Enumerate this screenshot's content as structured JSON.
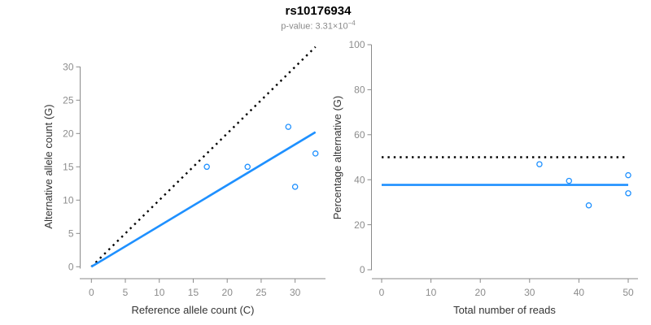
{
  "header": {
    "title": "rs10176934",
    "pvalue_label": "p-value:",
    "pvalue_mantissa": "3.31×10",
    "pvalue_exponent": "−4"
  },
  "colors": {
    "accent_blue": "#1E90FF",
    "axis_gray": "#8A8A8A",
    "tick_text_gray": "#8C8C8C",
    "axis_title_dark": "#333333",
    "reference_line_black": "#000000",
    "title_black": "#000000",
    "subtitle_gray": "#8A8A8A",
    "background": "#FFFFFF"
  },
  "chart_data": [
    {
      "type": "scatter",
      "panel": "left",
      "title": "",
      "xlabel": "Reference allele count (C)",
      "ylabel": "Alternative allele count (G)",
      "xlim": [
        0,
        33
      ],
      "ylim": [
        0,
        33
      ],
      "xticks": [
        0,
        5,
        10,
        15,
        20,
        25,
        30
      ],
      "yticks": [
        0,
        5,
        10,
        15,
        20,
        25,
        30
      ],
      "grid": false,
      "legend": false,
      "points": [
        {
          "x": 17,
          "y": 15
        },
        {
          "x": 23,
          "y": 15
        },
        {
          "x": 29,
          "y": 21
        },
        {
          "x": 30,
          "y": 12
        },
        {
          "x": 33,
          "y": 17
        }
      ],
      "lines": [
        {
          "name": "expected-1to1-line",
          "style": "dotted",
          "color": "#000000",
          "x1": 0,
          "y1": 0,
          "x2": 33,
          "y2": 33
        },
        {
          "name": "fitted-allelic-ratio-line",
          "style": "solid",
          "color": "#1E90FF",
          "x1": 0,
          "y1": 0,
          "x2": 33,
          "y2": 20.2
        }
      ]
    },
    {
      "type": "scatter",
      "panel": "right",
      "title": "",
      "xlabel": "Total number of reads",
      "ylabel": "Percentage alternative (G)",
      "xlim": [
        0,
        50
      ],
      "ylim": [
        0,
        100
      ],
      "xticks": [
        0,
        10,
        20,
        30,
        40,
        50
      ],
      "yticks": [
        0,
        20,
        40,
        60,
        80,
        100
      ],
      "grid": false,
      "legend": false,
      "points": [
        {
          "x": 32,
          "y": 46.9
        },
        {
          "x": 38,
          "y": 39.5
        },
        {
          "x": 42,
          "y": 28.6
        },
        {
          "x": 50,
          "y": 42.0
        },
        {
          "x": 50,
          "y": 34.0
        }
      ],
      "lines": [
        {
          "name": "expected-50-percent-line",
          "style": "dotted",
          "color": "#000000",
          "x1": 0,
          "y1": 50,
          "x2": 50,
          "y2": 50
        },
        {
          "name": "mean-percentage-line",
          "style": "solid",
          "color": "#1E90FF",
          "x1": 0,
          "y1": 37.7,
          "x2": 50,
          "y2": 37.7
        }
      ]
    }
  ]
}
